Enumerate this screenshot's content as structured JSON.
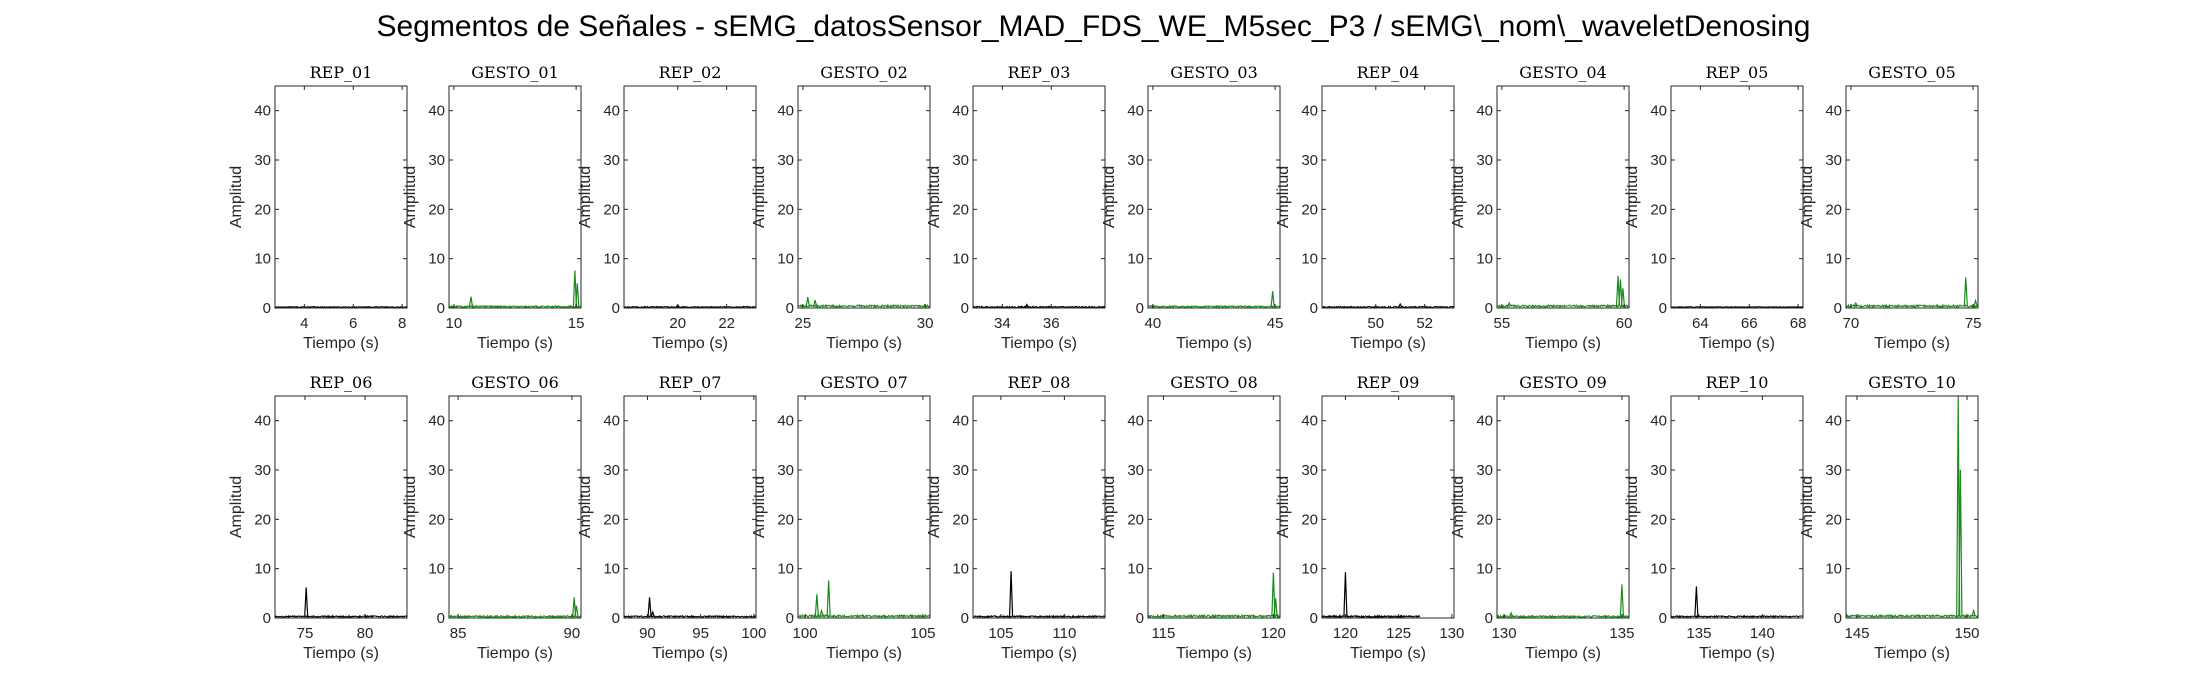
{
  "title": "Segmentos de Señales - sEMG_datosSensor_MAD_FDS_WE_M5sec_P3 / sEMG\\_nom\\_waveletDenosing",
  "colors": {
    "rep": "#000000",
    "gesto": "#1a8a1a",
    "axes": "#262626"
  },
  "chart_data": [
    {
      "type": "line",
      "title": "REP_01",
      "xlabel": "Tiempo (s)",
      "ylabel": "Amplitud",
      "xlim": [
        2.8,
        8.2
      ],
      "ylim": [
        0,
        45
      ],
      "xticks": [
        4,
        6,
        8
      ],
      "yticks": [
        0,
        10,
        20,
        30,
        40
      ],
      "series": [
        {
          "color": "#000000",
          "baseline": 0.2,
          "noise": 0.15,
          "spikes": []
        }
      ]
    },
    {
      "type": "line",
      "title": "GESTO_01",
      "xlabel": "Tiempo (s)",
      "ylabel": "Amplitud",
      "xlim": [
        9.8,
        15.2
      ],
      "ylim": [
        0,
        45
      ],
      "xticks": [
        10,
        15
      ],
      "yticks": [
        0,
        10,
        20,
        30,
        40
      ],
      "series": [
        {
          "color": "#1a8a1a",
          "baseline": 0.3,
          "noise": 0.3,
          "spikes": [
            [
              10.7,
              2.3
            ],
            [
              14.95,
              7.6
            ],
            [
              15.05,
              5.0
            ]
          ]
        }
      ]
    },
    {
      "type": "line",
      "title": "REP_02",
      "xlabel": "Tiempo (s)",
      "ylabel": "Amplitud",
      "xlim": [
        17.8,
        23.2
      ],
      "ylim": [
        0,
        45
      ],
      "xticks": [
        20,
        22
      ],
      "yticks": [
        0,
        10,
        20,
        30,
        40
      ],
      "series": [
        {
          "color": "#000000",
          "baseline": 0.2,
          "noise": 0.2,
          "spikes": [
            [
              20.0,
              0.6
            ]
          ]
        }
      ]
    },
    {
      "type": "line",
      "title": "GESTO_02",
      "xlabel": "Tiempo (s)",
      "ylabel": "Amplitud",
      "xlim": [
        24.8,
        30.2
      ],
      "ylim": [
        0,
        45
      ],
      "xticks": [
        25,
        30
      ],
      "yticks": [
        0,
        10,
        20,
        30,
        40
      ],
      "series": [
        {
          "color": "#1a8a1a",
          "baseline": 0.4,
          "noise": 0.4,
          "spikes": [
            [
              25.2,
              2.2
            ],
            [
              25.5,
              1.6
            ]
          ]
        }
      ]
    },
    {
      "type": "line",
      "title": "REP_03",
      "xlabel": "Tiempo (s)",
      "ylabel": "Amplitud",
      "xlim": [
        32.8,
        38.2
      ],
      "ylim": [
        0,
        45
      ],
      "xticks": [
        34,
        36
      ],
      "yticks": [
        0,
        10,
        20,
        30,
        40
      ],
      "series": [
        {
          "color": "#000000",
          "baseline": 0.2,
          "noise": 0.25,
          "spikes": [
            [
              35.0,
              0.7
            ]
          ]
        }
      ]
    },
    {
      "type": "line",
      "title": "GESTO_03",
      "xlabel": "Tiempo (s)",
      "ylabel": "Amplitud",
      "xlim": [
        39.8,
        45.2
      ],
      "ylim": [
        0,
        45
      ],
      "xticks": [
        40,
        45
      ],
      "yticks": [
        0,
        10,
        20,
        30,
        40
      ],
      "series": [
        {
          "color": "#1a8a1a",
          "baseline": 0.3,
          "noise": 0.3,
          "spikes": [
            [
              44.9,
              3.4
            ]
          ]
        }
      ]
    },
    {
      "type": "line",
      "title": "REP_04",
      "xlabel": "Tiempo (s)",
      "ylabel": "Amplitud",
      "xlim": [
        47.8,
        53.2
      ],
      "ylim": [
        0,
        45
      ],
      "xticks": [
        50,
        52
      ],
      "yticks": [
        0,
        10,
        20,
        30,
        40
      ],
      "series": [
        {
          "color": "#000000",
          "baseline": 0.2,
          "noise": 0.25,
          "spikes": [
            [
              51.0,
              0.8
            ]
          ]
        }
      ]
    },
    {
      "type": "line",
      "title": "GESTO_04",
      "xlabel": "Tiempo (s)",
      "ylabel": "Amplitud",
      "xlim": [
        54.8,
        60.2
      ],
      "ylim": [
        0,
        45
      ],
      "xticks": [
        55,
        60
      ],
      "yticks": [
        0,
        10,
        20,
        30,
        40
      ],
      "series": [
        {
          "color": "#1a8a1a",
          "baseline": 0.4,
          "noise": 0.4,
          "spikes": [
            [
              55.3,
              1.0
            ],
            [
              59.75,
              6.5
            ],
            [
              59.85,
              5.8
            ],
            [
              59.95,
              4.0
            ]
          ]
        }
      ]
    },
    {
      "type": "line",
      "title": "REP_05",
      "xlabel": "Tiempo (s)",
      "ylabel": "Amplitud",
      "xlim": [
        62.8,
        68.2
      ],
      "ylim": [
        0,
        45
      ],
      "xticks": [
        64,
        66,
        68
      ],
      "yticks": [
        0,
        10,
        20,
        30,
        40
      ],
      "series": [
        {
          "color": "#000000",
          "baseline": 0.2,
          "noise": 0.15,
          "spikes": []
        }
      ]
    },
    {
      "type": "line",
      "title": "GESTO_05",
      "xlabel": "Tiempo (s)",
      "ylabel": "Amplitud",
      "xlim": [
        69.8,
        75.2
      ],
      "ylim": [
        0,
        45
      ],
      "xticks": [
        70,
        75
      ],
      "yticks": [
        0,
        10,
        20,
        30,
        40
      ],
      "series": [
        {
          "color": "#1a8a1a",
          "baseline": 0.4,
          "noise": 0.4,
          "spikes": [
            [
              70.2,
              1.0
            ],
            [
              74.7,
              6.2
            ],
            [
              75.1,
              1.5
            ]
          ]
        }
      ]
    },
    {
      "type": "line",
      "title": "REP_06",
      "xlabel": "Tiempo (s)",
      "ylabel": "Amplitud",
      "xlim": [
        72.5,
        83.5
      ],
      "ylim": [
        0,
        45
      ],
      "xticks": [
        75,
        80
      ],
      "yticks": [
        0,
        10,
        20,
        30,
        40
      ],
      "series": [
        {
          "color": "#000000",
          "baseline": 0.3,
          "noise": 0.3,
          "spikes": [
            [
              75.1,
              6.2
            ]
          ]
        }
      ]
    },
    {
      "type": "line",
      "title": "GESTO_06",
      "xlabel": "Tiempo (s)",
      "ylabel": "Amplitud",
      "xlim": [
        84.6,
        90.4
      ],
      "ylim": [
        0,
        45
      ],
      "xticks": [
        85,
        90
      ],
      "yticks": [
        0,
        10,
        20,
        30,
        40
      ],
      "series": [
        {
          "color": "#1a8a1a",
          "baseline": 0.3,
          "noise": 0.35,
          "spikes": [
            [
              90.1,
              4.2
            ],
            [
              90.2,
              2.5
            ]
          ]
        }
      ]
    },
    {
      "type": "line",
      "title": "REP_07",
      "xlabel": "Tiempo (s)",
      "ylabel": "Amplitud",
      "xlim": [
        87.8,
        100.2
      ],
      "ylim": [
        0,
        45
      ],
      "xticks": [
        90,
        95,
        100
      ],
      "yticks": [
        0,
        10,
        20,
        30,
        40
      ],
      "series": [
        {
          "color": "#000000",
          "baseline": 0.3,
          "noise": 0.3,
          "spikes": [
            [
              90.2,
              4.2
            ],
            [
              90.5,
              1.2
            ]
          ]
        }
      ]
    },
    {
      "type": "line",
      "title": "GESTO_07",
      "xlabel": "Tiempo (s)",
      "ylabel": "Amplitud",
      "xlim": [
        99.7,
        105.3
      ],
      "ylim": [
        0,
        45
      ],
      "xticks": [
        100,
        105
      ],
      "yticks": [
        0,
        10,
        20,
        30,
        40
      ],
      "series": [
        {
          "color": "#1a8a1a",
          "baseline": 0.4,
          "noise": 0.4,
          "spikes": [
            [
              100.5,
              4.8
            ],
            [
              101.0,
              7.6
            ],
            [
              100.7,
              1.5
            ]
          ]
        }
      ]
    },
    {
      "type": "line",
      "title": "REP_08",
      "xlabel": "Tiempo (s)",
      "ylabel": "Amplitud",
      "xlim": [
        102.8,
        113.2
      ],
      "ylim": [
        0,
        45
      ],
      "xticks": [
        105,
        110
      ],
      "yticks": [
        0,
        10,
        20,
        30,
        40
      ],
      "series": [
        {
          "color": "#000000",
          "baseline": 0.3,
          "noise": 0.3,
          "spikes": [
            [
              105.8,
              9.5
            ]
          ]
        }
      ]
    },
    {
      "type": "line",
      "title": "GESTO_08",
      "xlabel": "Tiempo (s)",
      "ylabel": "Amplitud",
      "xlim": [
        114.3,
        120.3
      ],
      "ylim": [
        0,
        45
      ],
      "xticks": [
        115,
        120
      ],
      "yticks": [
        0,
        10,
        20,
        30,
        40
      ],
      "series": [
        {
          "color": "#1a8a1a",
          "baseline": 0.4,
          "noise": 0.4,
          "spikes": [
            [
              120.0,
              9.2
            ],
            [
              120.1,
              4.0
            ]
          ]
        }
      ]
    },
    {
      "type": "line",
      "title": "REP_09",
      "xlabel": "Tiempo (s)",
      "ylabel": "Amplitud",
      "xlim": [
        117.8,
        130.2
      ],
      "ylim": [
        0,
        45
      ],
      "xticks": [
        120,
        125,
        130
      ],
      "yticks": [
        0,
        10,
        20,
        30,
        40
      ],
      "series": [
        {
          "color": "#000000",
          "baseline": 0.3,
          "noise": 0.3,
          "spikes": [
            [
              120.0,
              9.3
            ]
          ],
          "xend": 127
        }
      ]
    },
    {
      "type": "line",
      "title": "GESTO_09",
      "xlabel": "Tiempo (s)",
      "ylabel": "Amplitud",
      "xlim": [
        129.7,
        135.3
      ],
      "ylim": [
        0,
        45
      ],
      "xticks": [
        130,
        135
      ],
      "yticks": [
        0,
        10,
        20,
        30,
        40
      ],
      "series": [
        {
          "color": "#1a8a1a",
          "baseline": 0.3,
          "noise": 0.35,
          "spikes": [
            [
              130.3,
              1.0
            ],
            [
              135.0,
              6.8
            ]
          ]
        }
      ]
    },
    {
      "type": "line",
      "title": "REP_10",
      "xlabel": "Tiempo (s)",
      "ylabel": "Amplitud",
      "xlim": [
        132.8,
        143.2
      ],
      "ylim": [
        0,
        45
      ],
      "xticks": [
        135,
        140
      ],
      "yticks": [
        0,
        10,
        20,
        30,
        40
      ],
      "series": [
        {
          "color": "#000000",
          "baseline": 0.3,
          "noise": 0.3,
          "spikes": [
            [
              134.8,
              6.4
            ]
          ]
        }
      ]
    },
    {
      "type": "line",
      "title": "GESTO_10",
      "xlabel": "Tiempo (s)",
      "ylabel": "Amplitud",
      "xlim": [
        144.5,
        150.5
      ],
      "ylim": [
        0,
        45
      ],
      "xticks": [
        145,
        150
      ],
      "yticks": [
        0,
        10,
        20,
        30,
        40
      ],
      "series": [
        {
          "color": "#1a8a1a",
          "baseline": 0.4,
          "noise": 0.4,
          "spikes": [
            [
              149.6,
              45.0
            ],
            [
              149.7,
              30.0
            ],
            [
              150.3,
              1.5
            ]
          ]
        }
      ]
    }
  ]
}
